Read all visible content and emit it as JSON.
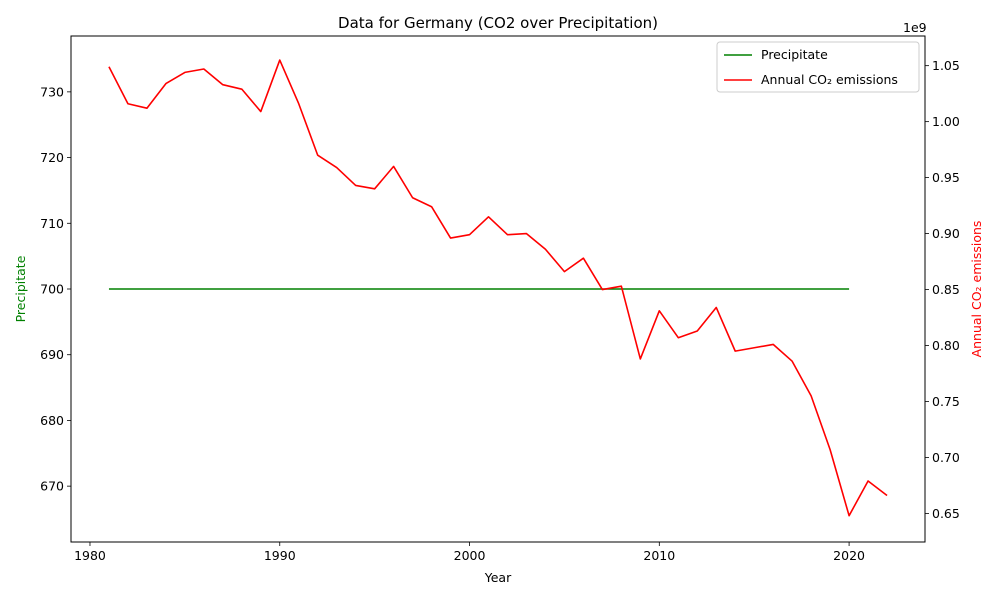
{
  "chart_data": {
    "type": "line",
    "title": "Data for Germany (CO2 over Precipitation)",
    "xlabel": "Year",
    "ylabel_left": "Precipitate",
    "ylabel_right": "Annual CO₂ emissions",
    "right_offset_text": "1e9",
    "xlim": [
      1979,
      2024
    ],
    "ylim_left": [
      661.5,
      738.5
    ],
    "ylim_right": [
      0.6245,
      1.0765
    ],
    "x_ticks": [
      1980,
      1990,
      2000,
      2010,
      2020
    ],
    "x_tick_labels": [
      "1980",
      "1990",
      "2000",
      "2010",
      "2020"
    ],
    "y_left_ticks": [
      670,
      680,
      690,
      700,
      710,
      720,
      730
    ],
    "y_left_tick_labels": [
      "670",
      "680",
      "690",
      "700",
      "710",
      "720",
      "730"
    ],
    "y_right_ticks": [
      0.65,
      0.7,
      0.75,
      0.8,
      0.85,
      0.9,
      0.95,
      1.0,
      1.05
    ],
    "y_right_tick_labels": [
      "0.65",
      "0.70",
      "0.75",
      "0.80",
      "0.85",
      "0.90",
      "0.95",
      "1.00",
      "1.05"
    ],
    "legend_position": "top-right",
    "grid": false,
    "series": [
      {
        "name": "Precipitate",
        "axis": "left",
        "color": "#008000",
        "x": [
          1981,
          2020
        ],
        "values": [
          700,
          700
        ]
      },
      {
        "name": "Annual CO₂ emissions",
        "axis": "right",
        "color": "#ff0000",
        "x": [
          1981,
          1982,
          1983,
          1984,
          1985,
          1986,
          1987,
          1988,
          1989,
          1990,
          1991,
          1992,
          1993,
          1994,
          1995,
          1996,
          1997,
          1998,
          1999,
          2000,
          2001,
          2002,
          2003,
          2004,
          2005,
          2006,
          2007,
          2008,
          2009,
          2010,
          2011,
          2012,
          2013,
          2014,
          2015,
          2016,
          2017,
          2018,
          2019,
          2020,
          2021,
          2022
        ],
        "values": [
          1.049,
          1.016,
          1.012,
          1.034,
          1.044,
          1.047,
          1.033,
          1.029,
          1.009,
          1.055,
          1.016,
          0.97,
          0.959,
          0.943,
          0.94,
          0.96,
          0.932,
          0.924,
          0.896,
          0.899,
          0.915,
          0.899,
          0.9,
          0.886,
          0.866,
          0.878,
          0.85,
          0.853,
          0.788,
          0.831,
          0.807,
          0.813,
          0.834,
          0.795,
          0.798,
          0.801,
          0.786,
          0.755,
          0.707,
          0.648,
          0.679,
          0.666
        ]
      }
    ]
  }
}
